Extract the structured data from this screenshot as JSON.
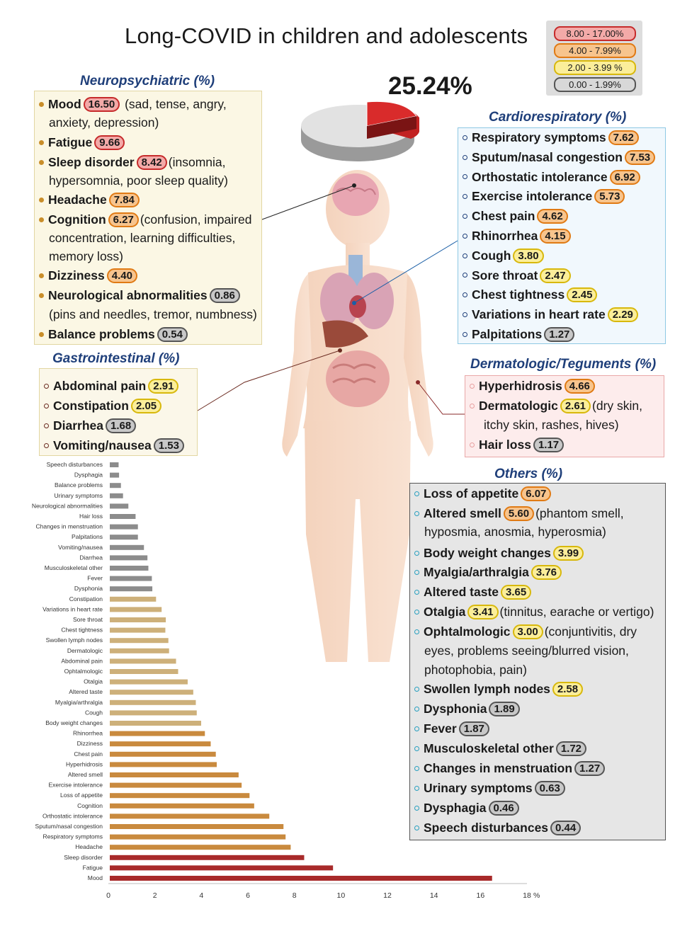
{
  "title": "Long-COVID in children and adolescents",
  "overall_percent": "25.24%",
  "legend": [
    {
      "label": "8.00 - 17.00%",
      "color": "#c62b2b"
    },
    {
      "label": "4.00 - 7.99%",
      "color": "#e07a14"
    },
    {
      "label": "2.00 - 3.99 %",
      "color": "#d8b80c"
    },
    {
      "label": "0.00 - 1.99%",
      "color": "#555555"
    }
  ],
  "neuro": {
    "header": "Neuropsychiatric (%)",
    "rows": [
      {
        "name": "Mood",
        "value": "16.50",
        "tier": "red",
        "note": "(sad, tense, angry,",
        "cont": "anxiety, depression)"
      },
      {
        "name": "Fatigue",
        "value": "9.66",
        "tier": "red",
        "note": "",
        "cont": ""
      },
      {
        "name": "Sleep disorder",
        "value": "8.42",
        "tier": "red",
        "note": "(insomnia,",
        "cont": "hypersomnia, poor sleep quality)"
      },
      {
        "name": "Headache",
        "value": "7.84",
        "tier": "org",
        "note": "",
        "cont": ""
      },
      {
        "name": "Cognition",
        "value": "6.27",
        "tier": "org",
        "note": "(confusion, impaired",
        "cont": "concentration, learning difficulties,",
        "cont2": "memory loss)"
      },
      {
        "name": "Dizziness",
        "value": "4.40",
        "tier": "org",
        "note": "",
        "cont": ""
      },
      {
        "name": "Neurological abnormalities",
        "value": "0.86",
        "tier": "gry",
        "note": "",
        "cont": "(pins and needles, tremor, numbness)"
      },
      {
        "name": "Balance problems",
        "value": "0.54",
        "tier": "gry",
        "note": "",
        "cont": ""
      }
    ]
  },
  "gastro": {
    "header": "Gastrointestinal (%)",
    "rows": [
      {
        "name": "Abdominal pain",
        "value": "2.91",
        "tier": "yel"
      },
      {
        "name": "Constipation",
        "value": "2.05",
        "tier": "yel"
      },
      {
        "name": "Diarrhea",
        "value": "1.68",
        "tier": "gry"
      },
      {
        "name": "Vomiting/nausea",
        "value": "1.53",
        "tier": "gry"
      }
    ]
  },
  "cardio": {
    "header": "Cardiorespiratory (%)",
    "rows": [
      {
        "name": "Respiratory symptoms",
        "value": "7.62",
        "tier": "org"
      },
      {
        "name": "Sputum/nasal congestion",
        "value": "7.53",
        "tier": "org"
      },
      {
        "name": "Orthostatic intolerance",
        "value": "6.92",
        "tier": "org"
      },
      {
        "name": "Exercise intolerance",
        "value": "5.73",
        "tier": "org"
      },
      {
        "name": "Chest pain",
        "value": "4.62",
        "tier": "org"
      },
      {
        "name": "Rhinorrhea",
        "value": "4.15",
        "tier": "org"
      },
      {
        "name": "Cough",
        "value": "3.80",
        "tier": "yel"
      },
      {
        "name": "Sore throat",
        "value": "2.47",
        "tier": "yel"
      },
      {
        "name": "Chest tightness",
        "value": "2.45",
        "tier": "yel"
      },
      {
        "name": "Variations in heart rate",
        "value": "2.29",
        "tier": "yel"
      },
      {
        "name": "Palpitations",
        "value": "1.27",
        "tier": "gry"
      }
    ]
  },
  "derma": {
    "header": "Dermatologic/Teguments (%)",
    "rows": [
      {
        "name": "Hyperhidrosis",
        "value": "4.66",
        "tier": "org",
        "note": "",
        "cont": ""
      },
      {
        "name": "Dermatologic",
        "value": "2.61",
        "tier": "yel",
        "note": "(dry skin,",
        "cont": "itchy skin, rashes, hives)"
      },
      {
        "name": "Hair loss",
        "value": "1.17",
        "tier": "gry",
        "note": "",
        "cont": ""
      }
    ]
  },
  "others": {
    "header": "Others (%)",
    "rows": [
      {
        "name": "Loss of appetite",
        "value": "6.07",
        "tier": "org",
        "note": "",
        "cont": ""
      },
      {
        "name": "Altered smell",
        "value": "5.60",
        "tier": "org",
        "note": "(phantom smell,",
        "cont": "hyposmia, anosmia, hyperosmia)"
      },
      {
        "name": "Body weight changes",
        "value": "3.99",
        "tier": "yel",
        "note": "",
        "cont": ""
      },
      {
        "name": "Myalgia/arthralgia",
        "value": "3.76",
        "tier": "yel",
        "note": "",
        "cont": ""
      },
      {
        "name": "Altered taste",
        "value": "3.65",
        "tier": "yel",
        "note": "",
        "cont": ""
      },
      {
        "name": "Otalgia",
        "value": "3.41",
        "tier": "yel",
        "note": "(tinnitus, earache or vertigo)",
        "cont": ""
      },
      {
        "name": "Ophtalmologic",
        "value": "3.00",
        "tier": "yel",
        "note": "(conjuntivitis, dry",
        "cont": "eyes, problems seeing/blurred vision,",
        "cont2": "photophobia, pain)"
      },
      {
        "name": "Swollen lymph nodes",
        "value": "2.58",
        "tier": "yel",
        "note": "",
        "cont": ""
      },
      {
        "name": "Dysphonia",
        "value": "1.89",
        "tier": "gry",
        "note": "",
        "cont": ""
      },
      {
        "name": "Fever",
        "value": "1.87",
        "tier": "gry",
        "note": "",
        "cont": ""
      },
      {
        "name": "Musculoskeletal other",
        "value": "1.72",
        "tier": "gry",
        "note": "",
        "cont": ""
      },
      {
        "name": "Changes in menstruation",
        "value": "1.27",
        "tier": "gry",
        "note": "",
        "cont": ""
      },
      {
        "name": "Urinary symptoms",
        "value": "0.63",
        "tier": "gry",
        "note": "",
        "cont": ""
      },
      {
        "name": "Dysphagia",
        "value": "0.46",
        "tier": "gry",
        "note": "",
        "cont": ""
      },
      {
        "name": "Speech disturbances",
        "value": "0.44",
        "tier": "gry",
        "note": "",
        "cont": ""
      }
    ]
  },
  "chart_data": {
    "type": "bar",
    "orientation": "horizontal",
    "title": "",
    "xlabel": "%",
    "xlim": [
      0,
      18
    ],
    "xticks": [
      "0",
      "2",
      "4",
      "6",
      "8",
      "10",
      "12",
      "14",
      "16",
      "18"
    ],
    "categories": [
      "Speech disturbances",
      "Dysphagia",
      "Balance problems",
      "Urinary symptoms",
      "Neurological abnormalities",
      "Hair loss",
      "Changes in menstruation",
      "Palpitations",
      "Vomiting/nausea",
      "Diarrhea",
      "Musculoskeletal other",
      "Fever",
      "Dysphonia",
      "Constipation",
      "Variations in heart rate",
      "Sore throat",
      "Chest tightness",
      "Swollen lymph nodes",
      "Dermatologic",
      "Abdominal pain",
      "Ophtalmologic",
      "Otalgia",
      "Altered taste",
      "Myalgia/arthralgia",
      "Cough",
      "Body weight changes",
      "Rhinorrhea",
      "Dizziness",
      "Chest pain",
      "Hyperhidrosis",
      "Altered smell",
      "Exercise intolerance",
      "Loss of appetite",
      "Cognition",
      "Orthostatic intolerance",
      "Sputum/nasal congestion",
      "Respiratory symptoms",
      "Headache",
      "Sleep disorder",
      "Fatigue",
      "Mood"
    ],
    "values": [
      0.44,
      0.46,
      0.54,
      0.63,
      0.86,
      1.17,
      1.27,
      1.27,
      1.53,
      1.68,
      1.72,
      1.87,
      1.89,
      2.05,
      2.29,
      2.47,
      2.45,
      2.58,
      2.61,
      2.91,
      3.0,
      3.41,
      3.65,
      3.76,
      3.8,
      3.99,
      4.15,
      4.4,
      4.62,
      4.66,
      5.6,
      5.73,
      6.07,
      6.27,
      6.92,
      7.53,
      7.62,
      7.84,
      8.42,
      9.66,
      16.5
    ],
    "tier_colors": {
      "red": "#a82a2a",
      "org": "#c98a3e",
      "yel": "#cdb07a",
      "gry": "#8c8c8c"
    }
  }
}
